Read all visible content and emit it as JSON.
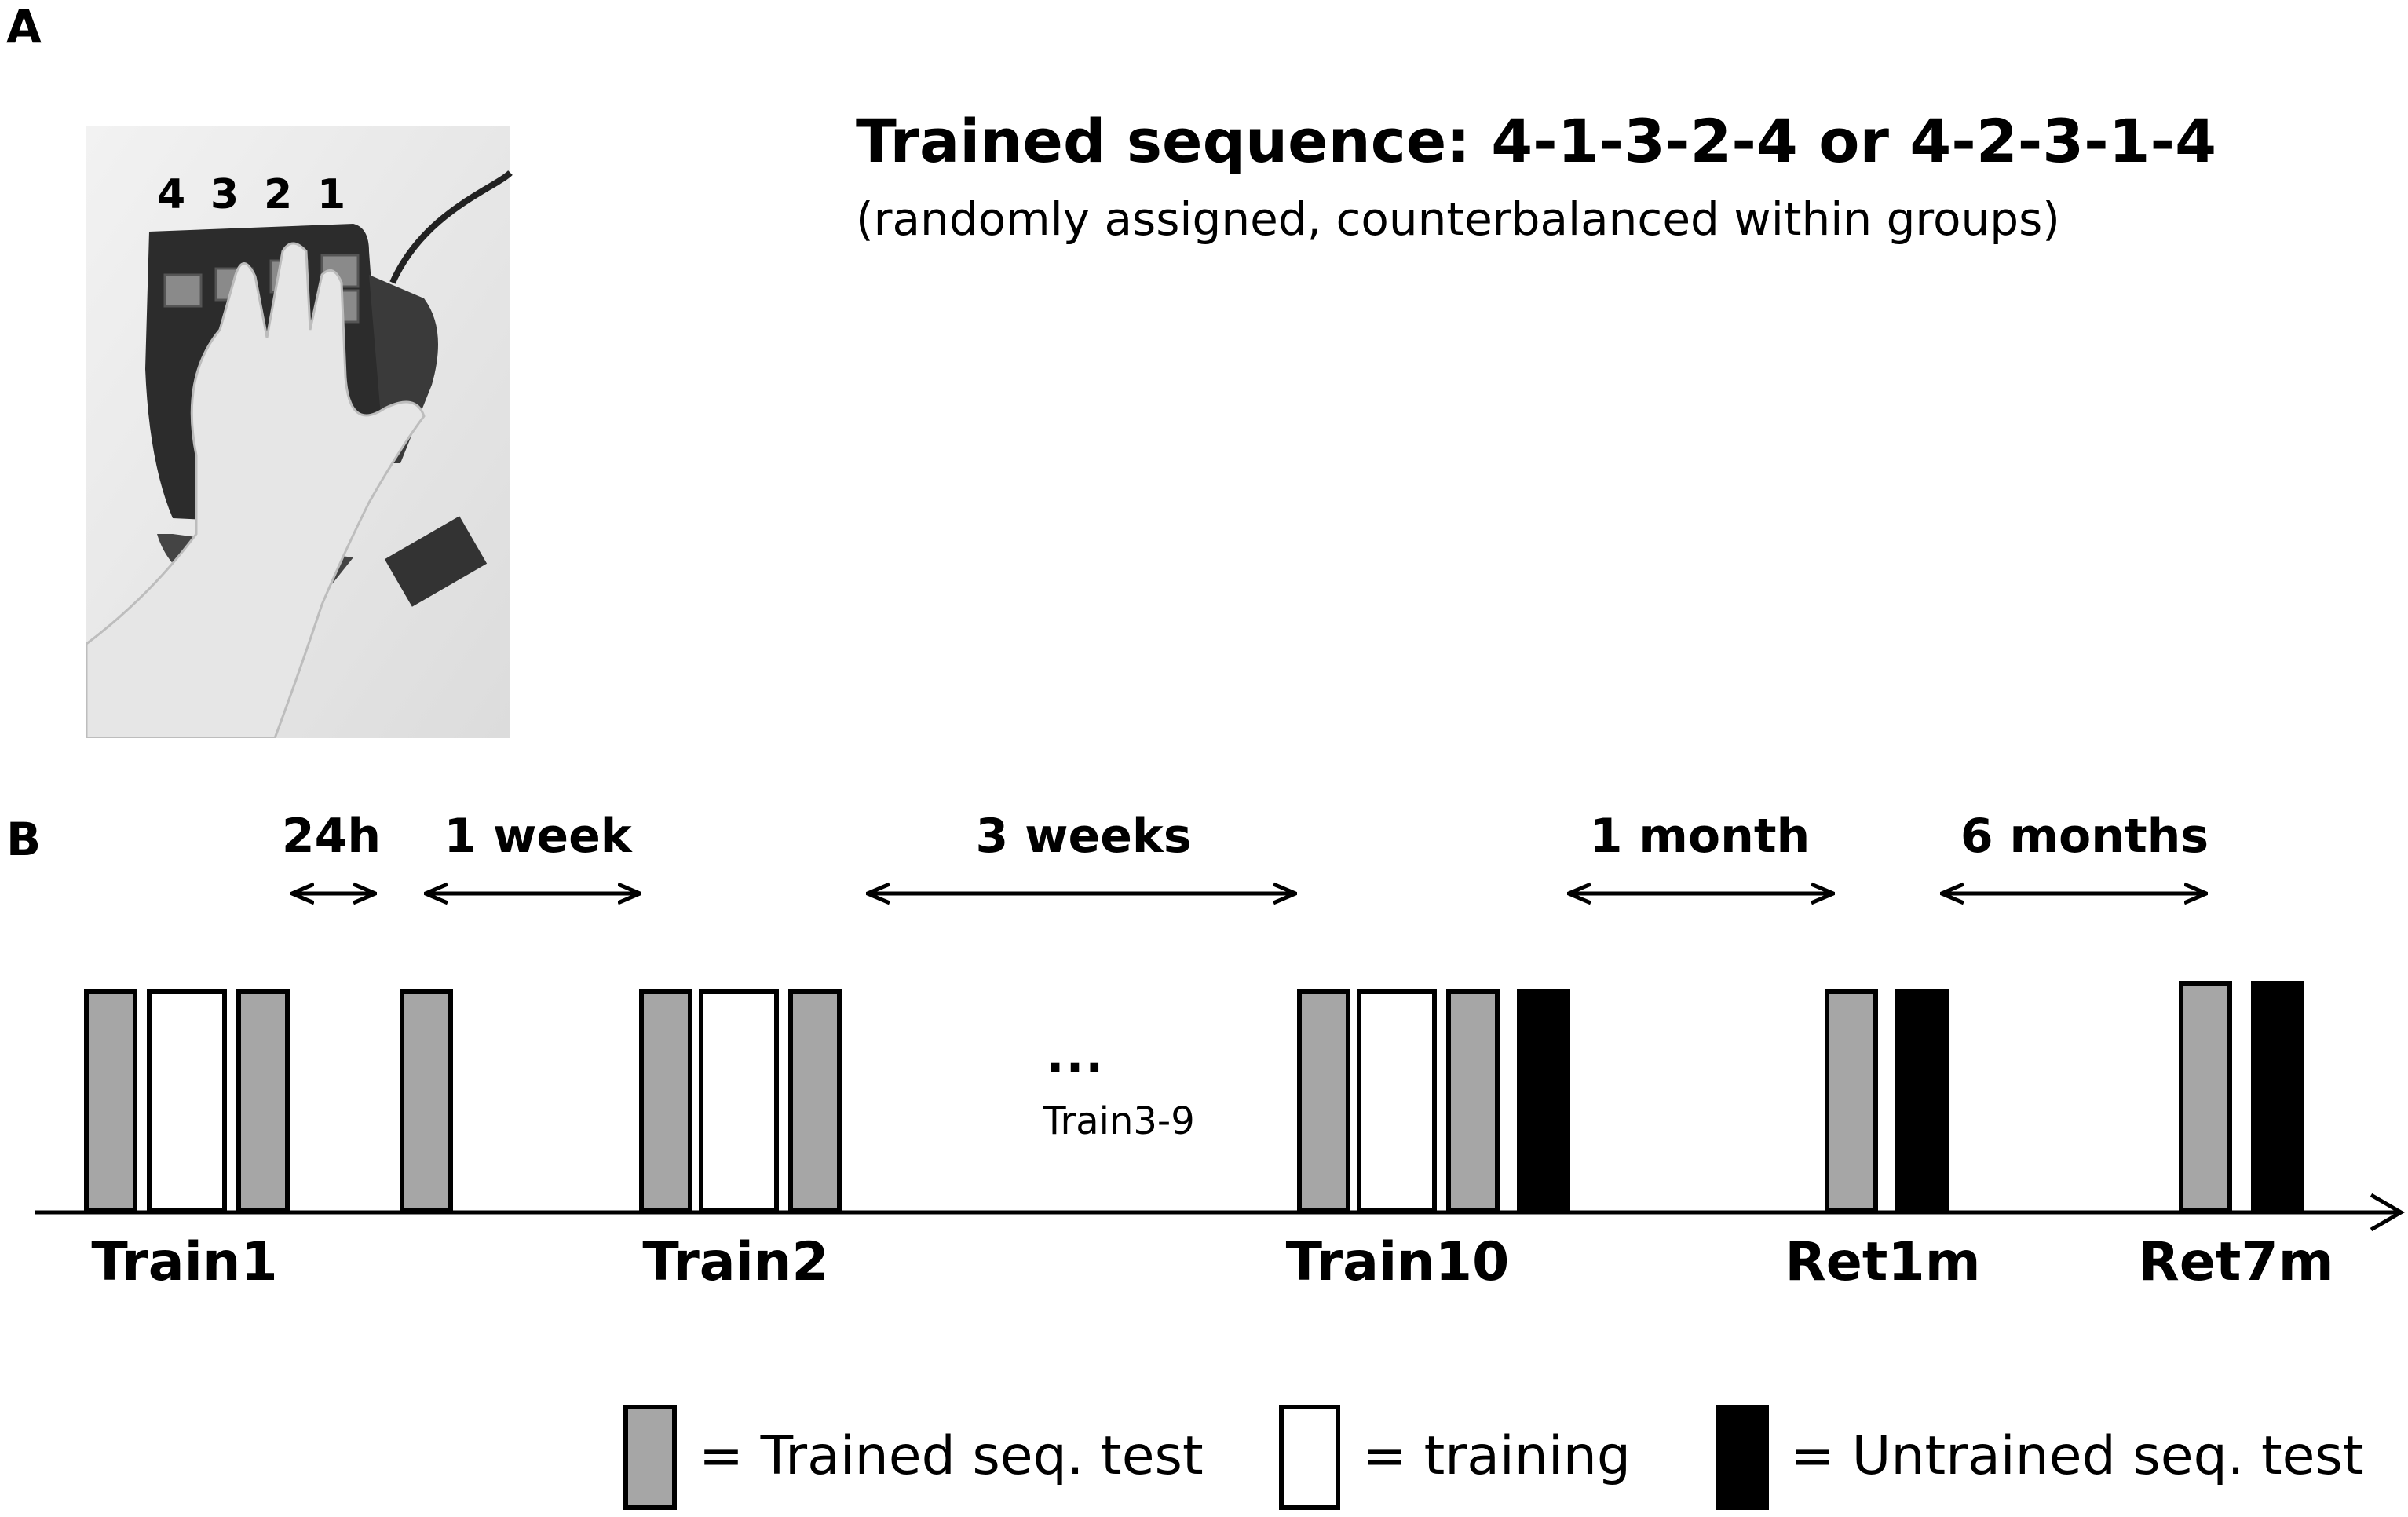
{
  "panel_a": {
    "label": "A",
    "key_numbers": [
      "4",
      "3",
      "2",
      "1"
    ],
    "title": "Trained sequence: 4-1-3-2-4  or 4-2-3-1-4",
    "subtitle": "(randomly assigned, counterbalanced within groups)"
  },
  "panel_b": {
    "label": "B",
    "intervals": [
      "24h",
      "1 week",
      "3 weeks",
      "1 month",
      "6 months"
    ],
    "sessions": [
      "Train1",
      "Train2",
      "Train10",
      "Ret1m",
      "Ret7m"
    ],
    "gap_dots": "...",
    "gap_label": "Train3-9",
    "legend": [
      {
        "type": "trained",
        "label": "= Trained seq. test"
      },
      {
        "type": "training",
        "label": "= training"
      },
      {
        "type": "untrained",
        "label": "= Untrained seq. test"
      }
    ]
  },
  "colors": {
    "trained": "#a6a6a6",
    "training": "#ffffff",
    "untrained": "#000000",
    "stroke": "#000000"
  }
}
